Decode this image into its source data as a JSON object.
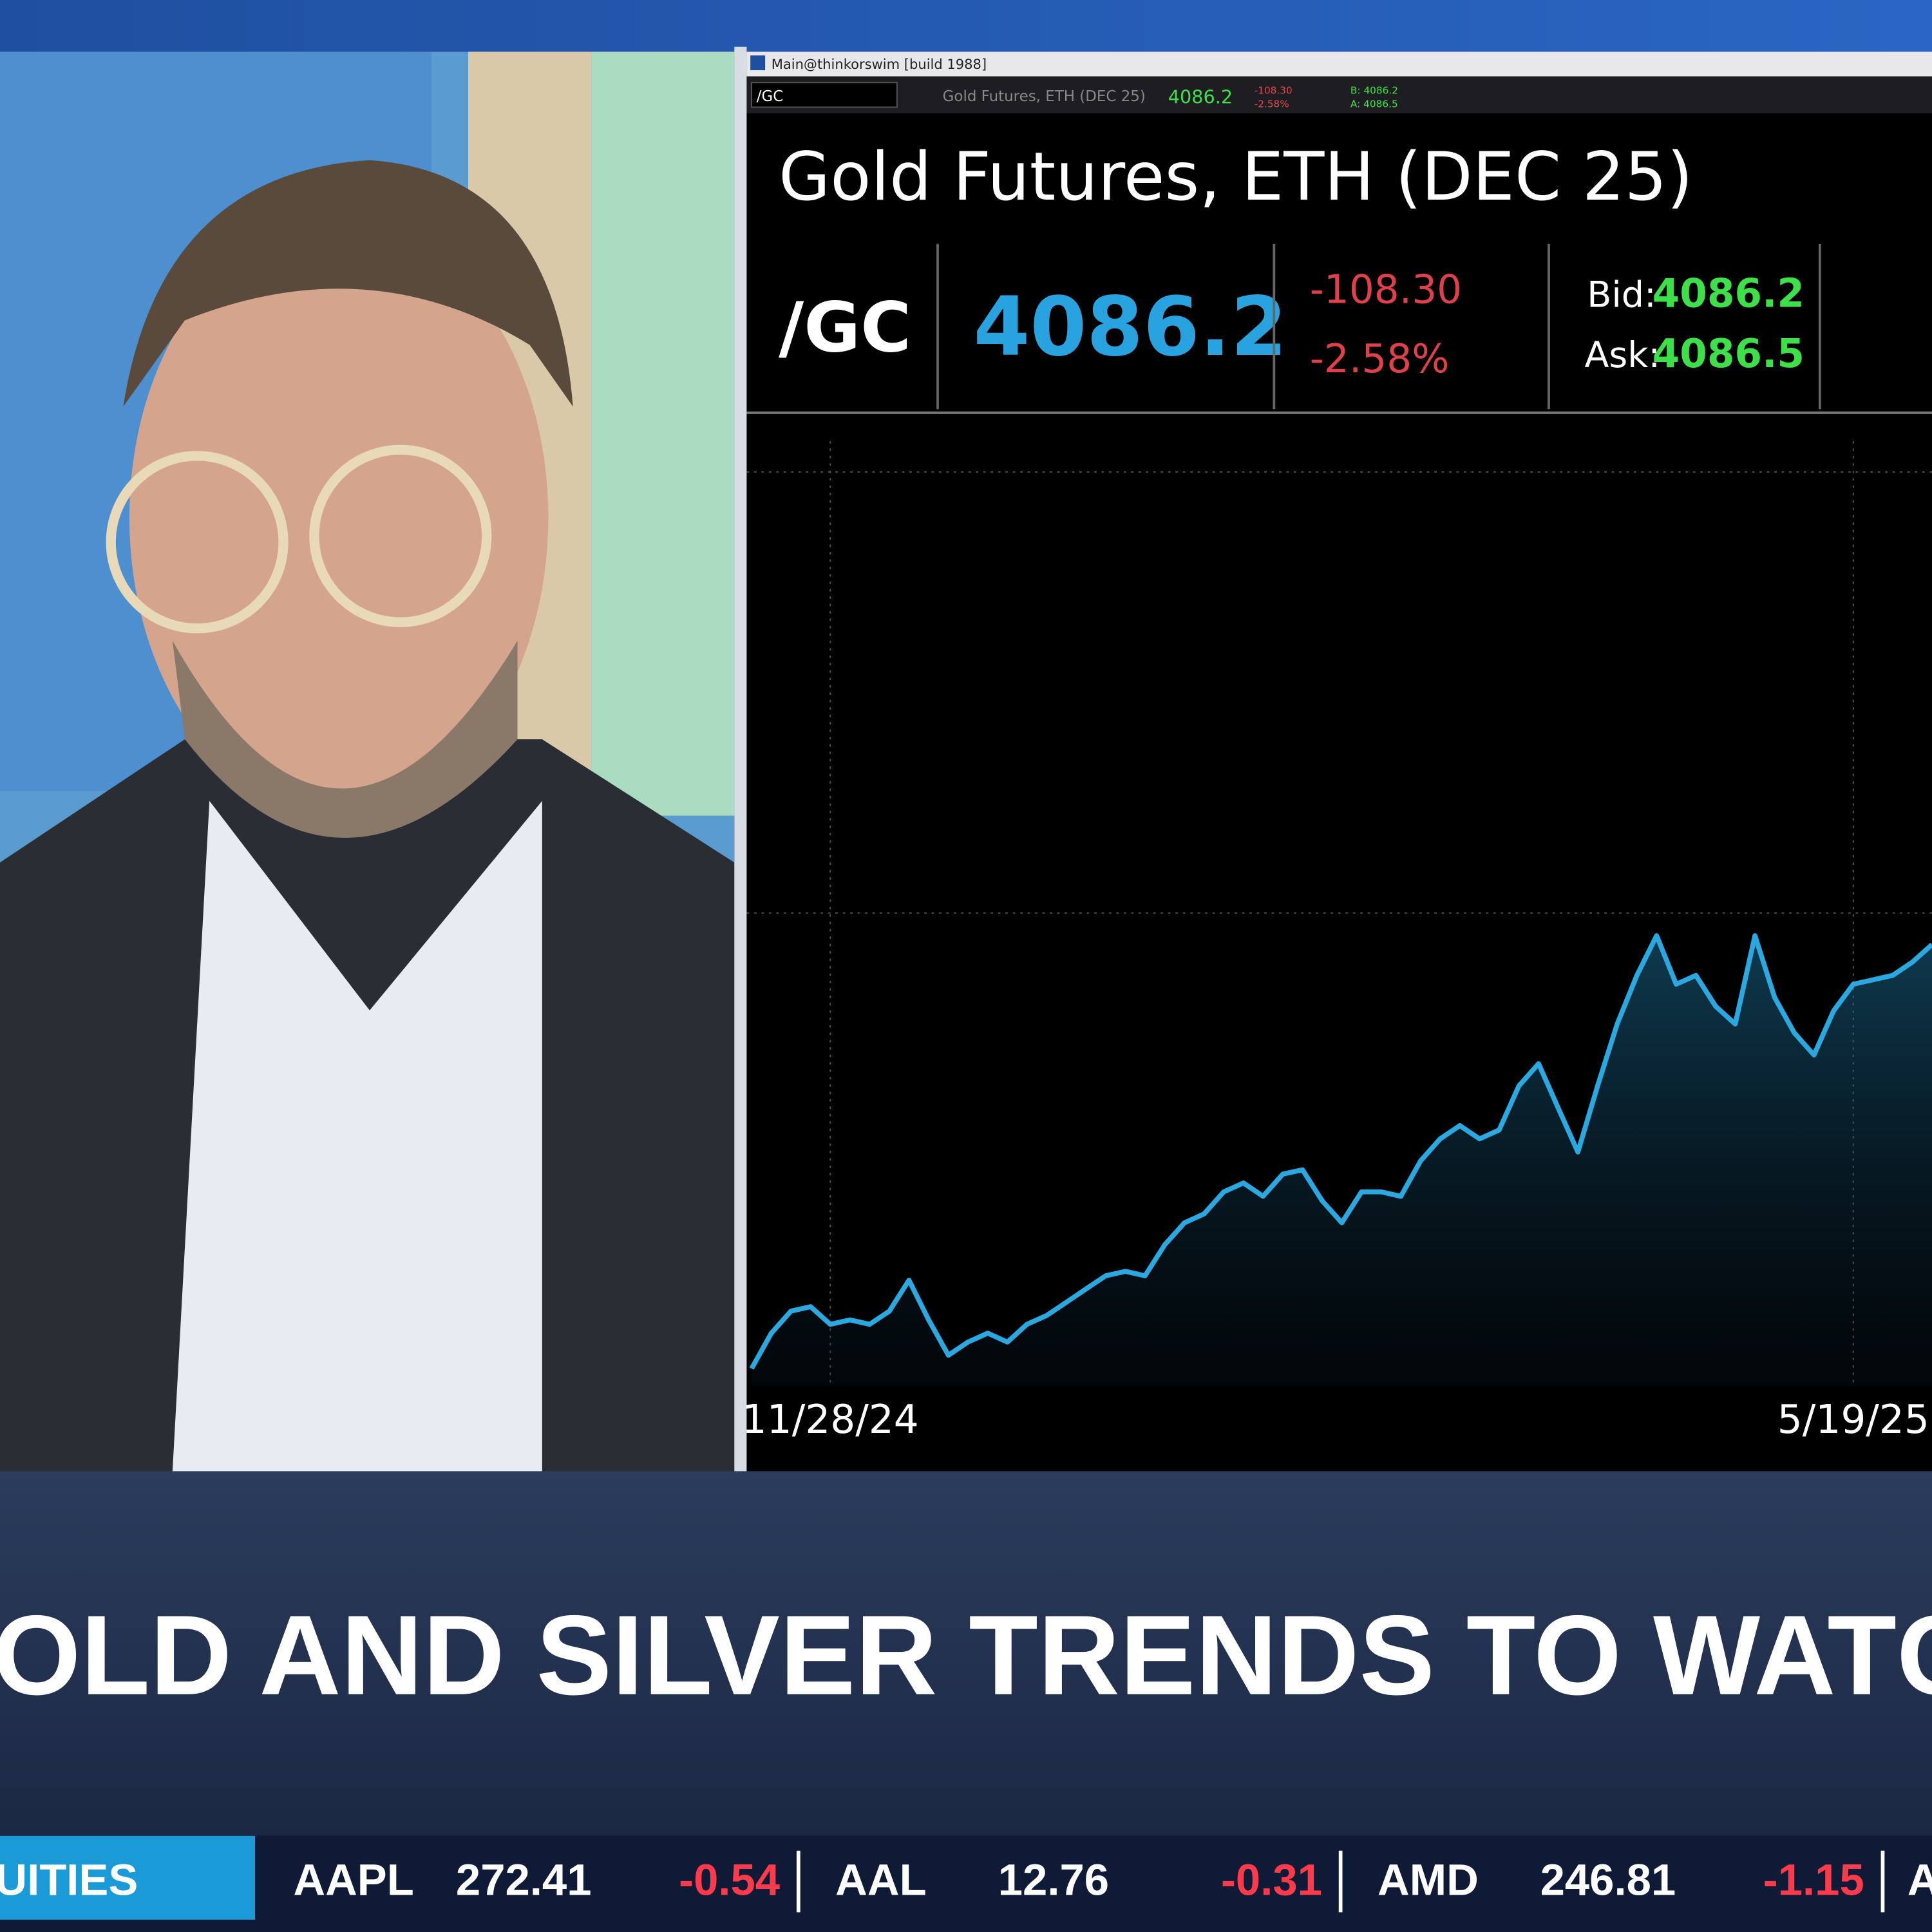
{
  "window": {
    "title": "Main@thinkorswim [build 1988]",
    "symbol_input": "/GC",
    "description": "Gold Futures, ETH (DEC 25)",
    "last": "4086.2",
    "change": "-108.30",
    "change_pct": "-2.58%",
    "bid": "B: 4086.2",
    "ask": "A: 4086.5"
  },
  "quote": {
    "title": "Gold Futures, ETH (DEC 25)",
    "symbol": "/GC",
    "last": "4086.2",
    "change": "-108.30",
    "change_pct": "-2.58%",
    "bid_label": "Bid:",
    "bid": "4086.2",
    "ask_label": "Ask:",
    "ask": "4086.5"
  },
  "chart_data": {
    "type": "line",
    "color": "#2aa8e0",
    "categories": [
      null,
      null,
      null,
      null,
      "11/28/24",
      null,
      null,
      null,
      null,
      null,
      null,
      null,
      null,
      null,
      null,
      null,
      null,
      null,
      null,
      null,
      null,
      null,
      null,
      null,
      null,
      null,
      null,
      null,
      null,
      null,
      null,
      null,
      null,
      null,
      null,
      null,
      null,
      null,
      null,
      null,
      null,
      null,
      null,
      null,
      null,
      null,
      null,
      null,
      null,
      null,
      null,
      null,
      null,
      null,
      null,
      null,
      "5/19/25",
      null,
      null,
      null,
      null
    ],
    "values": [
      2470,
      2550,
      2600,
      2610,
      2570,
      2580,
      2570,
      2600,
      2670,
      2580,
      2500,
      2530,
      2550,
      2530,
      2570,
      2590,
      2620,
      2650,
      2680,
      2690,
      2680,
      2750,
      2800,
      2820,
      2870,
      2890,
      2860,
      2910,
      2920,
      2850,
      2800,
      2870,
      2870,
      2860,
      2940,
      2990,
      3020,
      2990,
      3010,
      3110,
      3160,
      3060,
      2960,
      3110,
      3250,
      3360,
      3450,
      3340,
      3360,
      3290,
      3250,
      3450,
      3310,
      3230,
      3180,
      3280,
      3340,
      3350,
      3360,
      3390,
      3430
    ],
    "ylim": [
      2430,
      4620
    ]
  },
  "headline": "OLD AND SILVER TRENDS TO WATCH",
  "ticker": {
    "section": "UITIES",
    "items": [
      {
        "symbol": "AAPL",
        "price": "272.41",
        "change": "-0.54"
      },
      {
        "symbol": "AAL",
        "price": "12.76",
        "change": "-0.31"
      },
      {
        "symbol": "AMD",
        "price": "246.81",
        "change": "-1.15"
      }
    ],
    "next": "A"
  }
}
